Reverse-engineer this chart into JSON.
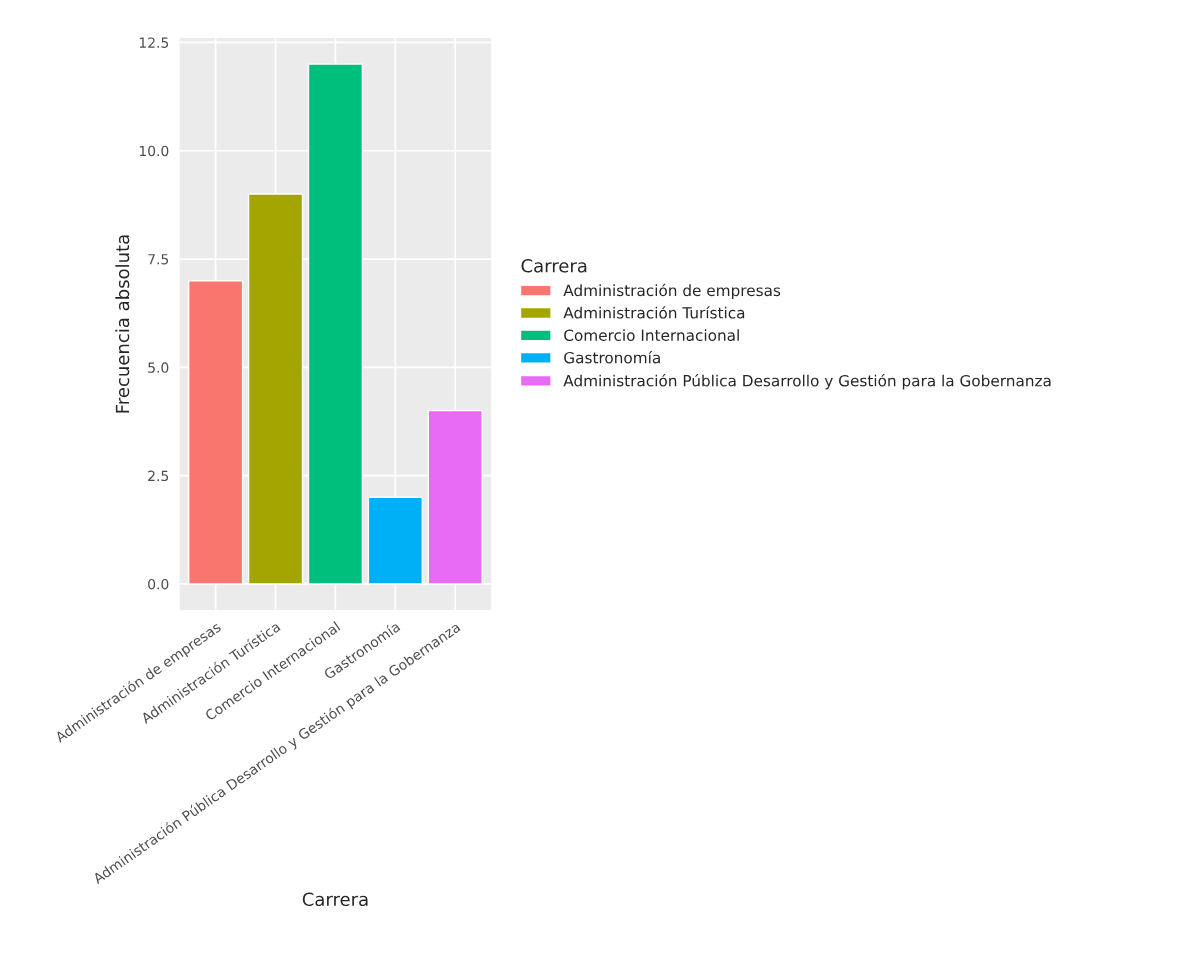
{
  "chart_data": {
    "type": "bar",
    "xlabel": "Carrera",
    "ylabel": "Frecuencia absoluta",
    "legend_title": "Carrera",
    "categories": [
      "Administración de empresas",
      "Administración Turística",
      "Comercio Internacional",
      "Gastronomía",
      "Administración Pública Desarrollo y Gestión para la Gobernanza"
    ],
    "series": [
      {
        "name": "Administración de empresas",
        "color": "#f8766d",
        "values": [
          7,
          null,
          null,
          null,
          null
        ]
      },
      {
        "name": "Administración Turística",
        "color": "#a3a500",
        "values": [
          null,
          9,
          null,
          null,
          null
        ]
      },
      {
        "name": "Comercio Internacional",
        "color": "#00bf7d",
        "values": [
          null,
          null,
          12,
          null,
          null
        ]
      },
      {
        "name": "Gastronomía",
        "color": "#00b0f6",
        "values": [
          null,
          null,
          null,
          2,
          null
        ]
      },
      {
        "name": "Administración Pública Desarrollo y Gestión para la Gobernanza",
        "color": "#e76bf3",
        "values": [
          null,
          null,
          null,
          null,
          4
        ]
      }
    ],
    "ylim": [
      -0.6,
      12.6
    ],
    "yticks": [
      {
        "value": 0,
        "label": "0.0"
      },
      {
        "value": 2.5,
        "label": "2.5"
      },
      {
        "value": 5,
        "label": "5.0"
      },
      {
        "value": 7.5,
        "label": "7.5"
      },
      {
        "value": 10,
        "label": "10.0"
      },
      {
        "value": 12.5,
        "label": "12.5"
      }
    ],
    "grid": true,
    "legend": "right"
  }
}
